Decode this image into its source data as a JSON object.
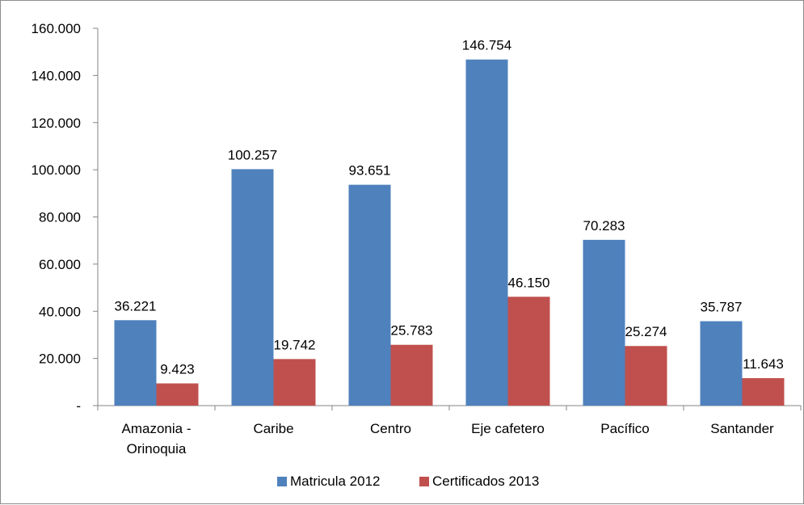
{
  "chart_data": {
    "type": "bar",
    "categories": [
      [
        "Amazonia -",
        "Orinoquia"
      ],
      [
        "Caribe"
      ],
      [
        "Centro"
      ],
      [
        "Eje cafetero"
      ],
      [
        "Pacífico"
      ],
      [
        "Santander"
      ]
    ],
    "series": [
      {
        "name": "Matricula 2012",
        "color": "#4f81bd",
        "values": [
          36221,
          100257,
          93651,
          146754,
          70283,
          35787
        ],
        "labels": [
          "36.221",
          "100.257",
          "93.651",
          "146.754",
          "70.283",
          "35.787"
        ]
      },
      {
        "name": "Certificados 2013",
        "color": "#c0504d",
        "values": [
          9423,
          19742,
          25783,
          46150,
          25274,
          11643
        ],
        "labels": [
          "9.423",
          "19.742",
          "25.783",
          "46.150",
          "25.274",
          "11.643"
        ]
      }
    ],
    "yticks": [
      0,
      20000,
      40000,
      60000,
      80000,
      100000,
      120000,
      140000,
      160000
    ],
    "ytick_labels": [
      "-",
      "20.000",
      "40.000",
      "60.000",
      "80.000",
      "100.000",
      "120.000",
      "140.000",
      "160.000"
    ],
    "ylim": [
      0,
      160000
    ],
    "grid": false,
    "legend_position": "bottom"
  }
}
